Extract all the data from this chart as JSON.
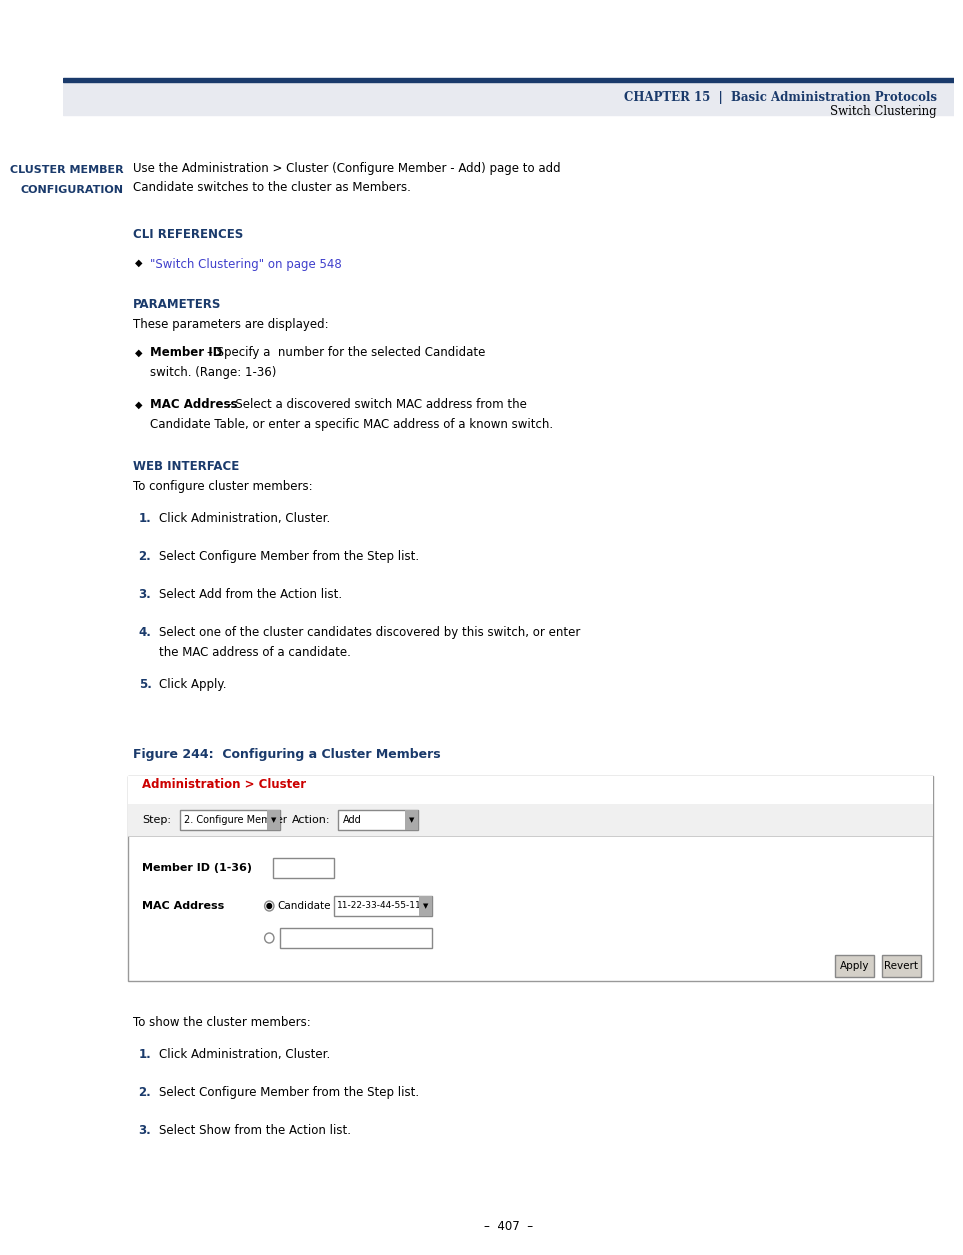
{
  "page_width": 9.54,
  "page_height": 12.35,
  "bg_color": "#ffffff",
  "header_bar_color": "#1a3a6b",
  "header_bg_color": "#e8eaf0",
  "chapter_text": "CHAPTER 15",
  "chapter_subtitle1": "Basic Administration Protocols",
  "chapter_subtitle2": "Switch Clustering",
  "left_title_small": "CLUSTER MEMBER\nCONFIGURATION",
  "left_title_color": "#1a3a6b",
  "body_text_color": "#000000",
  "link_color": "#0000cc",
  "red_color": "#cc0000",
  "blue_dark": "#1a3a6b",
  "section_cli_ref": "CLI REFERENCES",
  "section_cli_link": "\"Switch Clustering\" on page 548",
  "section_params": "PARAMETERS",
  "params_intro": "These parameters are displayed:",
  "param1_bold": "Member ID",
  "param1_text": " – Specify a Member ID number for the selected Candidate\nswitch. (Range: 1-36)",
  "param2_bold": "MAC Address",
  "param2_text": " – Select a discovered switch MAC address from the\nCandidate Table, or enter a specific MAC address of a known switch.",
  "section_web": "WEB INTERFACE",
  "web_intro": "To configure cluster members:",
  "steps": [
    "Click Administration, Cluster.",
    "Select Configure Member from the Step list.",
    "Select Add from the Action list.",
    "Select one of the cluster candidates discovered by this switch, or enter\nthe MAC address of a candidate.",
    "Click Apply."
  ],
  "figure_label": "Figure 244:  Configuring a Cluster Members",
  "figure_label_color": "#1a3a6b",
  "intro_text": "Use the Administration > Cluster (Configure Member - Add) page to add\nCandidate switches to the cluster as Members.",
  "show_steps": [
    "Click Administration, Cluster.",
    "Select Configure Member from the Step list.",
    "Select Show from the Action list."
  ],
  "show_intro": "To show the cluster members:",
  "page_number": "–  407  –",
  "ui_admin_label": "Administration > Cluster",
  "ui_step_label": "Step:",
  "ui_step_value": "2. Configure Member",
  "ui_action_label": "Action:",
  "ui_action_value": "Add",
  "ui_member_id_label": "Member ID (1-36)",
  "ui_mac_label": "MAC Address",
  "ui_candidate_label": "Candidate",
  "ui_mac_value": "11-22-33-44-55-11",
  "ui_apply_btn": "Apply",
  "ui_revert_btn": "Revert"
}
